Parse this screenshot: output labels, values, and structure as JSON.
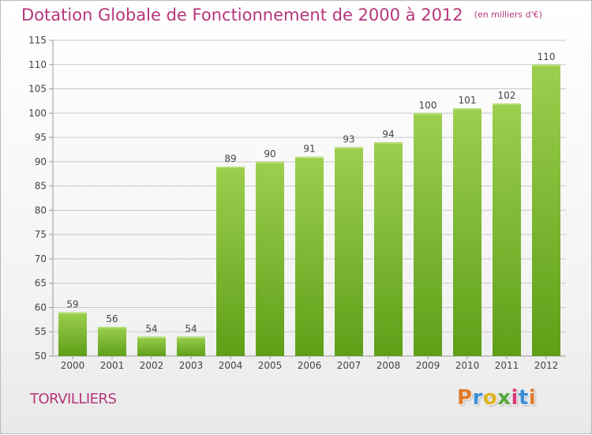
{
  "header": {
    "title": "Dotation Globale de Fonctionnement de 2000 à 2012",
    "unit": "(en milliers d'€)"
  },
  "footer": {
    "commune": "TORVILLIERS",
    "logo_text": "Proxiti",
    "logo_letters": [
      {
        "char": "P",
        "color": "#e07a2a"
      },
      {
        "char": "r",
        "color": "#3a8fd6"
      },
      {
        "char": "o",
        "color": "#e0b420"
      },
      {
        "char": "x",
        "color": "#52a83c"
      },
      {
        "char": "i",
        "color": "#d93a7a"
      },
      {
        "char": "t",
        "color": "#3a8fd6"
      },
      {
        "char": "i",
        "color": "#e07a2a"
      }
    ]
  },
  "chart_data": {
    "type": "bar",
    "title": "Dotation Globale de Fonctionnement de 2000 à 2012",
    "subtitle": "(en milliers d'€)",
    "categories": [
      "2000",
      "2001",
      "2002",
      "2003",
      "2004",
      "2005",
      "2006",
      "2007",
      "2008",
      "2009",
      "2010",
      "2011",
      "2012"
    ],
    "values": [
      59,
      56,
      54,
      54,
      89,
      90,
      91,
      93,
      94,
      100,
      101,
      102,
      110
    ],
    "ylim": [
      50,
      115
    ],
    "yticks": [
      50,
      55,
      60,
      65,
      70,
      75,
      80,
      85,
      90,
      95,
      100,
      105,
      110,
      115
    ],
    "grid": true,
    "bar_color_top": "#9ccf4e",
    "bar_color_bottom": "#5e9f18",
    "grid_color": "#c8c8c8",
    "title_color": "#b5367a"
  }
}
